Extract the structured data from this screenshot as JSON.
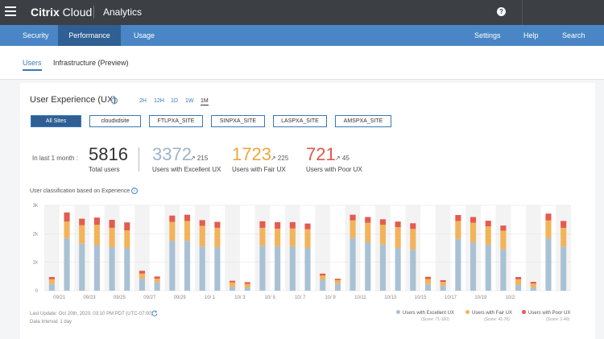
{
  "topbar": {
    "brand_bold": "Citrix",
    "brand_rest": " Cloud",
    "app": "Analytics",
    "help": "?"
  },
  "nav": {
    "security": "Security",
    "performance": "Performance",
    "usage": "Usage",
    "settings": "Settings",
    "help": "Help",
    "search": "Search"
  },
  "subnav": {
    "users": "Users",
    "infrastructure": "Infrastructure (Preview)"
  },
  "ux": {
    "title": "User Experience (UX)",
    "info": "i",
    "ranges": [
      "2H",
      "12H",
      "1D",
      "1W",
      "1M"
    ],
    "active_range": "1M"
  },
  "sites": [
    "All Sites",
    "cloudxdsite",
    "FTLPXA_SITE",
    "SINPXA_SITE",
    "LASPXA_SITE",
    "AMSPXA_SITE"
  ],
  "stats": {
    "period": "In last 1 month :",
    "total": "5816",
    "total_label": "Total users",
    "excellent": "3372",
    "excellent_trend": "↗ 215",
    "excellent_label": "Users with Excellent UX",
    "fair": "1723",
    "fair_trend": "↗ 225",
    "fair_label": "Users with Fair UX",
    "poor": "721",
    "poor_trend": "↗ 45",
    "poor_label": "Users with Poor UX"
  },
  "classification_title": "User classification based on Experience",
  "colors": {
    "excellent": "#a9c1d4",
    "fair": "#f2b35a",
    "poor": "#e45b4f",
    "excellent_text": "#9db4c8",
    "fair_text": "#f0a63e",
    "poor_text": "#e0584b"
  },
  "chart_data": {
    "type": "bar",
    "stacked": true,
    "ylim": [
      0,
      3000
    ],
    "yticks": [
      "0",
      "1k",
      "2k",
      "3k"
    ],
    "xtick_labels": [
      "09/21",
      "09/23",
      "09/25",
      "09/27",
      "09/29",
      "10/ 1",
      "10/ 3",
      "10/ 5",
      "10/ 7",
      "10/ 9",
      "10/11",
      "10/13",
      "10/15",
      "10/17",
      "10/19",
      "10/2:"
    ],
    "series": [
      {
        "name": "Users with Excellent UX",
        "values": [
          250,
          1850,
          1650,
          1600,
          1530,
          1500,
          420,
          300,
          1750,
          1750,
          1550,
          1530,
          130,
          110,
          1580,
          1560,
          1560,
          1500,
          380,
          250,
          1850,
          1700,
          1620,
          1500,
          1440,
          230,
          180,
          1820,
          1700,
          1620,
          1450,
          200,
          110,
          1840,
          1550
        ]
      },
      {
        "name": "Users with Fair UX",
        "values": [
          150,
          580,
          650,
          720,
          680,
          620,
          180,
          120,
          670,
          700,
          730,
          680,
          160,
          130,
          630,
          620,
          630,
          660,
          150,
          120,
          620,
          690,
          700,
          730,
          730,
          180,
          130,
          630,
          690,
          640,
          660,
          200,
          140,
          630,
          660
        ]
      },
      {
        "name": "Users with Poor UX",
        "values": [
          80,
          320,
          230,
          250,
          280,
          280,
          100,
          80,
          220,
          220,
          200,
          210,
          60,
          60,
          230,
          230,
          220,
          200,
          70,
          50,
          200,
          200,
          190,
          200,
          200,
          80,
          60,
          210,
          200,
          200,
          180,
          80,
          60,
          240,
          240
        ]
      }
    ]
  },
  "footer": {
    "last_update": "Last Update: Oct 20th, 2020, 03:10 PM PDT (UTC-07:00)",
    "data_interval": "Data Interval: 1 day"
  },
  "legend": {
    "excellent": "Users with Excellent UX",
    "excellent_score": "(Score: 71-100)",
    "fair": "Users with Fair UX",
    "fair_score": "(Score: 41-70)",
    "poor": "Users with Poor UX",
    "poor_score": "(Score: 1-40)"
  }
}
